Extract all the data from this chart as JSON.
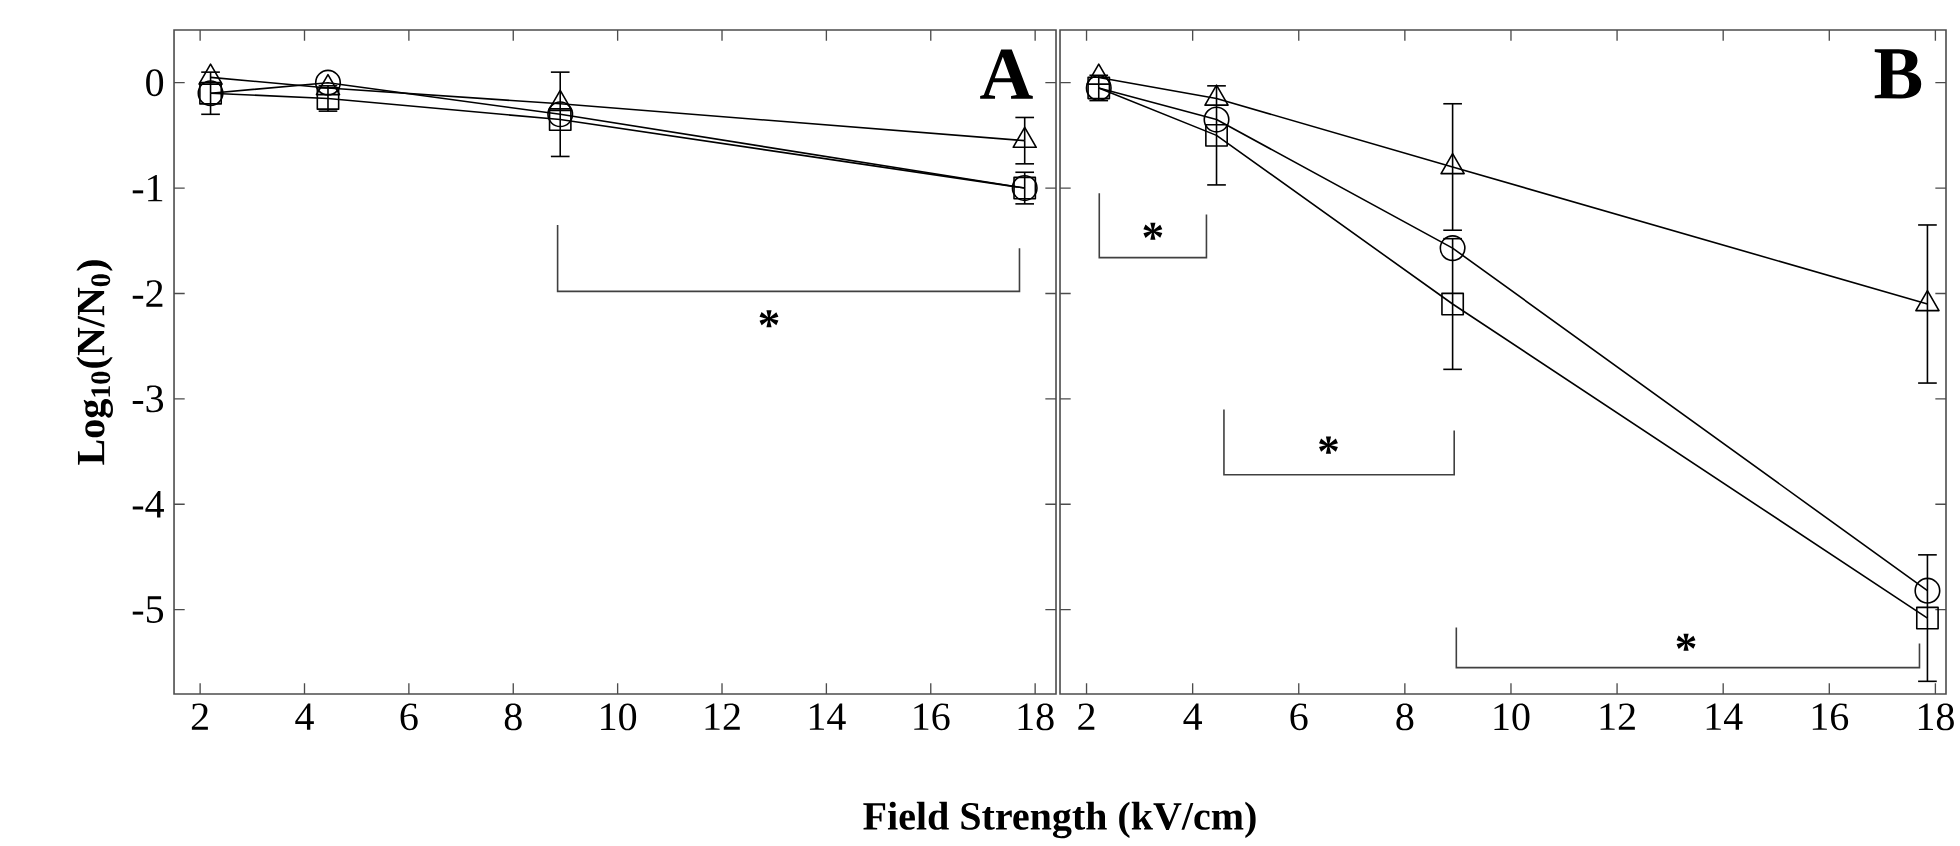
{
  "chart_data": [
    {
      "type": "line",
      "ylabel": "Log$_{10}$(N/N$_{0}$)",
      "xlim": [
        1.5,
        18.4
      ],
      "ylim": [
        -5.8,
        0.5
      ],
      "xticks": [
        2,
        4,
        6,
        8,
        10,
        12,
        14,
        16,
        18
      ],
      "yticks": [
        0,
        -1,
        -2,
        -3,
        -4,
        -5
      ],
      "grid": false,
      "line_style": "solid",
      "x": [
        2.2,
        4.45,
        8.9,
        17.8
      ],
      "series": [
        {
          "color": "#000000",
          "marker": "triangle",
          "values": [
            0.05,
            -0.05,
            -0.2,
            -0.55
          ],
          "errors": [
            null,
            null,
            null,
            0.22
          ]
        },
        {
          "color": "#000000",
          "marker": "circle",
          "values": [
            -0.1,
            0.0,
            -0.3,
            -1.0
          ],
          "errors": [
            0.2,
            null,
            0.4,
            0.15
          ]
        },
        {
          "color": "#000000",
          "marker": "square",
          "values": [
            -0.1,
            -0.15,
            -0.35,
            -1.0
          ],
          "errors": [
            null,
            0.12,
            null,
            null
          ]
        }
      ],
      "annotations": [
        "A",
        "*"
      ]
    },
    {
      "type": "line",
      "xlabel": "Field Strength (kV/cm)",
      "xlim": [
        1.5,
        18.2
      ],
      "ylim": [
        -5.8,
        0.5
      ],
      "xticks": [
        2,
        4,
        6,
        8,
        10,
        12,
        14,
        16,
        18
      ],
      "yticks": [
        0,
        -1,
        -2,
        -3,
        -4,
        -5
      ],
      "tick_labels": "x",
      "grid": false,
      "line_style": "solid",
      "x": [
        2.23,
        4.45,
        8.9,
        17.85
      ],
      "series": [
        {
          "color": "#000000",
          "marker": "triangle",
          "values": [
            0.05,
            -0.15,
            -0.8,
            -2.1
          ],
          "errors": [
            null,
            null,
            0.6,
            0.75
          ]
        },
        {
          "color": "#000000",
          "marker": "circle",
          "values": [
            -0.05,
            -0.35,
            -1.57,
            -4.82
          ],
          "errors": [
            0.12,
            null,
            null,
            null
          ]
        },
        {
          "color": "#000000",
          "marker": "square",
          "values": [
            -0.05,
            -0.5,
            -2.1,
            -5.08
          ],
          "errors": [
            null,
            0.47,
            0.62,
            0.6
          ]
        }
      ],
      "annotations": [
        "B",
        "*",
        "*",
        "*"
      ]
    }
  ]
}
